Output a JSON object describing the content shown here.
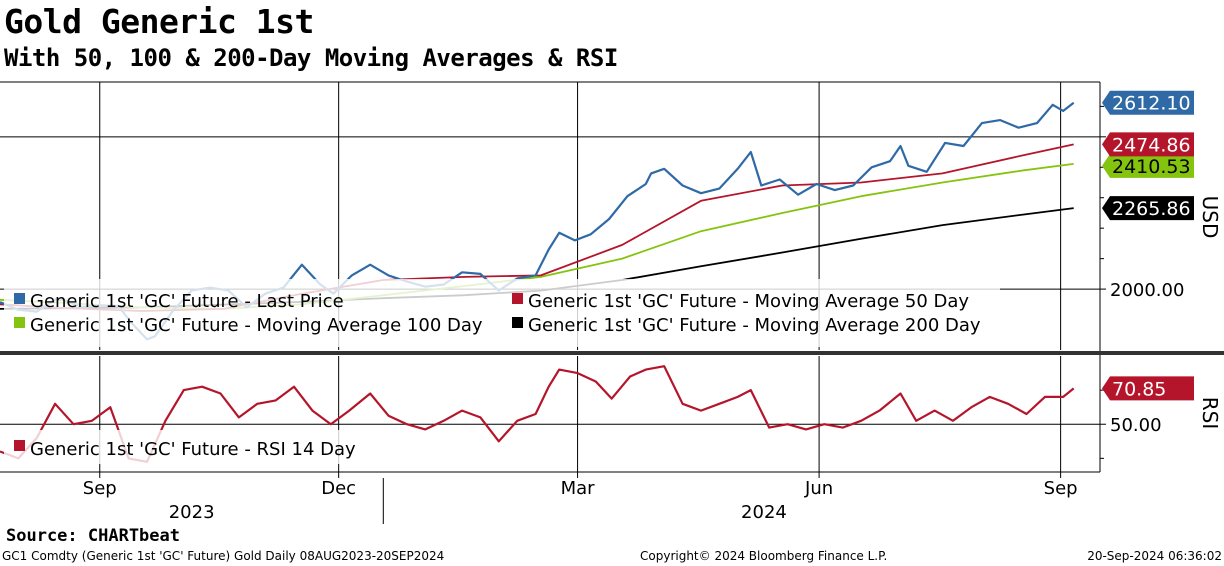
{
  "title": "Gold Generic 1st",
  "subtitle": "With 50, 100 & 200-Day Moving Averages & RSI",
  "source": "Source: CHARTbeat",
  "footer": {
    "left": "GC1 Comdty (Generic 1st 'GC' Future) Gold  Daily 08AUG2023-20SEP2024",
    "center": "Copyright© 2024 Bloomberg Finance L.P.",
    "right": "20-Sep-2024 06:36:02"
  },
  "colors": {
    "price": "#2f6aa6",
    "ma50": "#b5152b",
    "ma100": "#84c40f",
    "ma200": "#000000",
    "rsi": "#b5152b"
  },
  "chart_data": [
    {
      "type": "line",
      "panel": "price",
      "ylabel": "USD",
      "ylim": [
        1800,
        2680
      ],
      "yticks": [
        2000
      ],
      "ytick_labels": [
        "2000.00"
      ],
      "xlim": [
        "2023-08-08",
        "2024-09-30"
      ],
      "month_ticks": [
        {
          "date": "2023-09-15",
          "label": "Sep"
        },
        {
          "date": "2023-12-15",
          "label": "Dec"
        },
        {
          "date": "2024-03-15",
          "label": "Mar"
        },
        {
          "date": "2024-06-15",
          "label": "Jun"
        },
        {
          "date": "2024-09-15",
          "label": "Sep"
        }
      ],
      "year_labels": [
        {
          "date": "2023-10-20",
          "label": "2023"
        },
        {
          "date": "2024-05-25",
          "label": "2024"
        }
      ],
      "series": [
        {
          "name": "Generic 1st 'GC' Future - Last Price",
          "key": "price",
          "last_value_label": "2612.10",
          "points": [
            [
              "2023-08-08",
              1957
            ],
            [
              "2023-08-15",
              1932
            ],
            [
              "2023-08-22",
              1926
            ],
            [
              "2023-08-29",
              1966
            ],
            [
              "2023-09-01",
              1965
            ],
            [
              "2023-09-08",
              1942
            ],
            [
              "2023-09-15",
              1946
            ],
            [
              "2023-09-22",
              1945
            ],
            [
              "2023-09-27",
              1890
            ],
            [
              "2023-10-03",
              1835
            ],
            [
              "2023-10-06",
              1845
            ],
            [
              "2023-10-13",
              1930
            ],
            [
              "2023-10-20",
              1995
            ],
            [
              "2023-10-27",
              2005
            ],
            [
              "2023-11-03",
              1995
            ],
            [
              "2023-11-10",
              1940
            ],
            [
              "2023-11-17",
              1985
            ],
            [
              "2023-11-24",
              2005
            ],
            [
              "2023-12-01",
              2080
            ],
            [
              "2023-12-08",
              2015
            ],
            [
              "2023-12-13",
              1985
            ],
            [
              "2023-12-20",
              2045
            ],
            [
              "2023-12-27",
              2080
            ],
            [
              "2024-01-03",
              2045
            ],
            [
              "2024-01-10",
              2025
            ],
            [
              "2024-01-17",
              2008
            ],
            [
              "2024-01-24",
              2015
            ],
            [
              "2024-01-31",
              2055
            ],
            [
              "2024-02-07",
              2050
            ],
            [
              "2024-02-14",
              1995
            ],
            [
              "2024-02-21",
              2035
            ],
            [
              "2024-02-28",
              2045
            ],
            [
              "2024-03-04",
              2130
            ],
            [
              "2024-03-08",
              2185
            ],
            [
              "2024-03-14",
              2160
            ],
            [
              "2024-03-20",
              2180
            ],
            [
              "2024-03-27",
              2230
            ],
            [
              "2024-04-03",
              2305
            ],
            [
              "2024-04-10",
              2345
            ],
            [
              "2024-04-12",
              2380
            ],
            [
              "2024-04-17",
              2395
            ],
            [
              "2024-04-24",
              2340
            ],
            [
              "2024-05-01",
              2315
            ],
            [
              "2024-05-08",
              2330
            ],
            [
              "2024-05-15",
              2395
            ],
            [
              "2024-05-20",
              2450
            ],
            [
              "2024-05-24",
              2340
            ],
            [
              "2024-05-31",
              2360
            ],
            [
              "2024-06-07",
              2310
            ],
            [
              "2024-06-14",
              2345
            ],
            [
              "2024-06-21",
              2325
            ],
            [
              "2024-06-28",
              2340
            ],
            [
              "2024-07-05",
              2400
            ],
            [
              "2024-07-12",
              2420
            ],
            [
              "2024-07-16",
              2470
            ],
            [
              "2024-07-19",
              2405
            ],
            [
              "2024-07-26",
              2385
            ],
            [
              "2024-08-02",
              2480
            ],
            [
              "2024-08-09",
              2470
            ],
            [
              "2024-08-16",
              2545
            ],
            [
              "2024-08-23",
              2555
            ],
            [
              "2024-08-30",
              2530
            ],
            [
              "2024-09-06",
              2545
            ],
            [
              "2024-09-12",
              2605
            ],
            [
              "2024-09-16",
              2585
            ],
            [
              "2024-09-20",
              2612
            ]
          ]
        },
        {
          "name": "Generic 1st 'GC' Future - Moving Average 50 Day",
          "key": "ma50",
          "last_value_label": "2474.86",
          "points": [
            [
              "2023-08-08",
              1950
            ],
            [
              "2023-09-01",
              1938
            ],
            [
              "2023-10-01",
              1928
            ],
            [
              "2023-11-01",
              1935
            ],
            [
              "2023-12-01",
              1985
            ],
            [
              "2024-01-01",
              2030
            ],
            [
              "2024-02-01",
              2040
            ],
            [
              "2024-03-01",
              2045
            ],
            [
              "2024-04-01",
              2145
            ],
            [
              "2024-05-01",
              2290
            ],
            [
              "2024-06-01",
              2340
            ],
            [
              "2024-07-01",
              2350
            ],
            [
              "2024-08-01",
              2380
            ],
            [
              "2024-09-01",
              2440
            ],
            [
              "2024-09-20",
              2475
            ]
          ]
        },
        {
          "name": "Generic 1st 'GC' Future - Moving Average 100 Day",
          "key": "ma100",
          "last_value_label": "2410.53",
          "points": [
            [
              "2023-08-08",
              1965
            ],
            [
              "2023-09-01",
              1955
            ],
            [
              "2023-10-01",
              1940
            ],
            [
              "2023-11-01",
              1935
            ],
            [
              "2023-12-01",
              1950
            ],
            [
              "2024-01-01",
              1980
            ],
            [
              "2024-02-01",
              2010
            ],
            [
              "2024-03-01",
              2040
            ],
            [
              "2024-04-01",
              2100
            ],
            [
              "2024-05-01",
              2190
            ],
            [
              "2024-06-01",
              2250
            ],
            [
              "2024-07-01",
              2305
            ],
            [
              "2024-08-01",
              2350
            ],
            [
              "2024-09-01",
              2390
            ],
            [
              "2024-09-20",
              2411
            ]
          ]
        },
        {
          "name": "Generic 1st 'GC' Future - Moving Average 200 Day",
          "key": "ma200",
          "last_value_label": "2265.86",
          "points": [
            [
              "2023-08-08",
              1935
            ],
            [
              "2023-10-01",
              1940
            ],
            [
              "2023-12-01",
              1958
            ],
            [
              "2024-01-01",
              1970
            ],
            [
              "2024-02-01",
              1980
            ],
            [
              "2024-03-01",
              1995
            ],
            [
              "2024-04-01",
              2030
            ],
            [
              "2024-05-01",
              2075
            ],
            [
              "2024-06-01",
              2120
            ],
            [
              "2024-07-01",
              2165
            ],
            [
              "2024-08-01",
              2210
            ],
            [
              "2024-09-01",
              2245
            ],
            [
              "2024-09-20",
              2266
            ]
          ]
        }
      ]
    },
    {
      "type": "line",
      "panel": "rsi",
      "ylabel": "RSI",
      "ylim": [
        22,
        90
      ],
      "yticks": [
        50
      ],
      "ytick_labels": [
        "50.00"
      ],
      "series": [
        {
          "name": "Generic 1st 'GC' Future - RSI 14 Day",
          "key": "rsi",
          "last_value_label": "70.85",
          "points": [
            [
              "2023-08-08",
              34
            ],
            [
              "2023-08-15",
              30
            ],
            [
              "2023-08-22",
              42
            ],
            [
              "2023-08-29",
              62
            ],
            [
              "2023-09-05",
              50
            ],
            [
              "2023-09-12",
              52
            ],
            [
              "2023-09-19",
              60
            ],
            [
              "2023-09-26",
              30
            ],
            [
              "2023-10-03",
              28
            ],
            [
              "2023-10-10",
              52
            ],
            [
              "2023-10-17",
              70
            ],
            [
              "2023-10-24",
              72
            ],
            [
              "2023-10-31",
              68
            ],
            [
              "2023-11-07",
              54
            ],
            [
              "2023-11-14",
              62
            ],
            [
              "2023-11-21",
              64
            ],
            [
              "2023-11-28",
              72
            ],
            [
              "2023-12-05",
              58
            ],
            [
              "2023-12-12",
              50
            ],
            [
              "2023-12-19",
              58
            ],
            [
              "2023-12-27",
              68
            ],
            [
              "2024-01-03",
              55
            ],
            [
              "2024-01-10",
              50
            ],
            [
              "2024-01-17",
              47
            ],
            [
              "2024-01-24",
              52
            ],
            [
              "2024-01-31",
              58
            ],
            [
              "2024-02-07",
              54
            ],
            [
              "2024-02-14",
              40
            ],
            [
              "2024-02-21",
              52
            ],
            [
              "2024-02-28",
              56
            ],
            [
              "2024-03-04",
              72
            ],
            [
              "2024-03-08",
              82
            ],
            [
              "2024-03-15",
              80
            ],
            [
              "2024-03-22",
              75
            ],
            [
              "2024-03-28",
              65
            ],
            [
              "2024-04-04",
              78
            ],
            [
              "2024-04-10",
              82
            ],
            [
              "2024-04-17",
              84
            ],
            [
              "2024-04-24",
              62
            ],
            [
              "2024-05-01",
              58
            ],
            [
              "2024-05-08",
              62
            ],
            [
              "2024-05-15",
              66
            ],
            [
              "2024-05-20",
              70
            ],
            [
              "2024-05-27",
              48
            ],
            [
              "2024-06-03",
              50
            ],
            [
              "2024-06-10",
              47
            ],
            [
              "2024-06-17",
              50
            ],
            [
              "2024-06-24",
              48
            ],
            [
              "2024-07-01",
              52
            ],
            [
              "2024-07-08",
              58
            ],
            [
              "2024-07-16",
              68
            ],
            [
              "2024-07-22",
              52
            ],
            [
              "2024-07-29",
              58
            ],
            [
              "2024-08-05",
              52
            ],
            [
              "2024-08-12",
              60
            ],
            [
              "2024-08-19",
              66
            ],
            [
              "2024-08-26",
              62
            ],
            [
              "2024-09-02",
              56
            ],
            [
              "2024-09-09",
              66
            ],
            [
              "2024-09-16",
              66
            ],
            [
              "2024-09-20",
              71
            ]
          ]
        }
      ]
    }
  ]
}
